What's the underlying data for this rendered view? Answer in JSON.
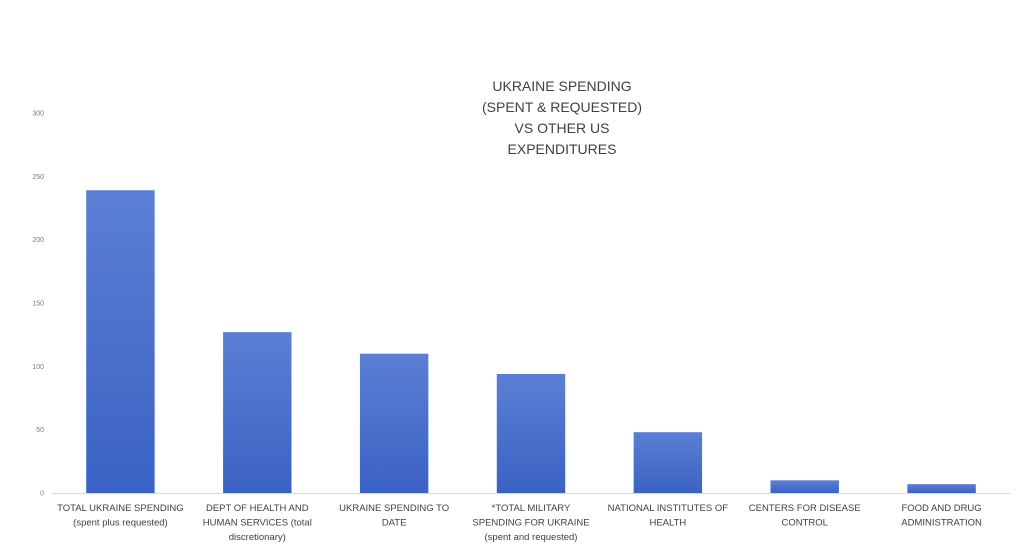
{
  "chart_data": {
    "type": "bar",
    "title_lines": [
      "UKRAINE SPENDING",
      "(SPENT & REQUESTED)",
      "VS OTHER US",
      "EXPENDITURES"
    ],
    "categories": [
      [
        "TOTAL UKRAINE SPENDING",
        "(spent plus requested)"
      ],
      [
        "DEPT OF HEALTH AND",
        "HUMAN SERVICES (total",
        "discretionary)"
      ],
      [
        "UKRAINE SPENDING TO",
        "DATE"
      ],
      [
        "*TOTAL MILITARY",
        "SPENDING FOR UKRAINE",
        "(spent and requested)"
      ],
      [
        "NATIONAL INSTITUTES OF",
        "HEALTH"
      ],
      [
        "CENTERS FOR DISEASE",
        "CONTROL"
      ],
      [
        "FOOD AND DRUG",
        "ADMINISTRATION"
      ]
    ],
    "values": [
      239,
      127,
      110,
      94,
      48,
      10,
      7
    ],
    "ylim": [
      0,
      300
    ],
    "yticks": [
      0,
      50,
      100,
      150,
      200,
      250,
      300
    ],
    "ytick_labels": [
      "0",
      "50",
      "100",
      "150",
      "200",
      "250",
      "300"
    ],
    "bar_color_top": "#5b7fd4",
    "bar_color_bottom": "#3a62c4",
    "grid": false
  }
}
